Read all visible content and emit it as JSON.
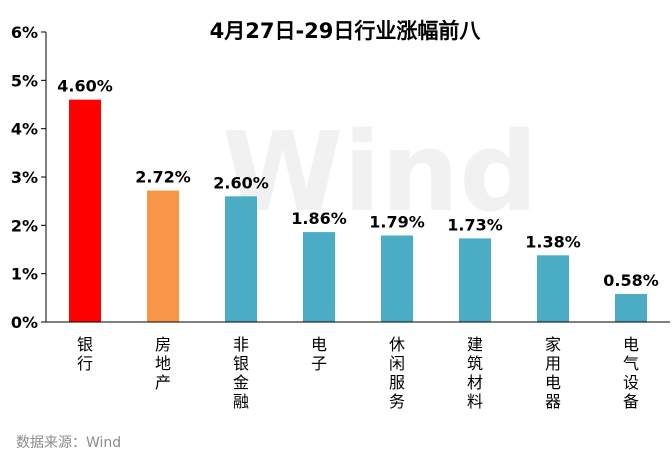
{
  "chart_data": {
    "type": "bar",
    "title": "4月27日-29日行业涨幅前八",
    "categories": [
      "银行",
      "房地产",
      "非银金融",
      "电子",
      "休闲服务",
      "建筑材料",
      "家用电器",
      "电气设备"
    ],
    "values": [
      4.6,
      2.72,
      2.6,
      1.86,
      1.79,
      1.73,
      1.38,
      0.58
    ],
    "value_labels": [
      "4.60%",
      "2.72%",
      "2.60%",
      "1.86%",
      "1.79%",
      "1.73%",
      "1.38%",
      "0.58%"
    ],
    "bar_colors": [
      "#ff0000",
      "#f79646",
      "#4bacc6",
      "#4bacc6",
      "#4bacc6",
      "#4bacc6",
      "#4bacc6",
      "#4bacc6"
    ],
    "ylim": [
      0,
      6
    ],
    "yticks": [
      0,
      1,
      2,
      3,
      4,
      5,
      6
    ],
    "ytick_labels": [
      "0%",
      "1%",
      "2%",
      "3%",
      "4%",
      "5%",
      "6%"
    ],
    "xlabel": "",
    "ylabel": "",
    "grid": false
  },
  "watermark": "Wind",
  "source": "数据来源：Wind"
}
